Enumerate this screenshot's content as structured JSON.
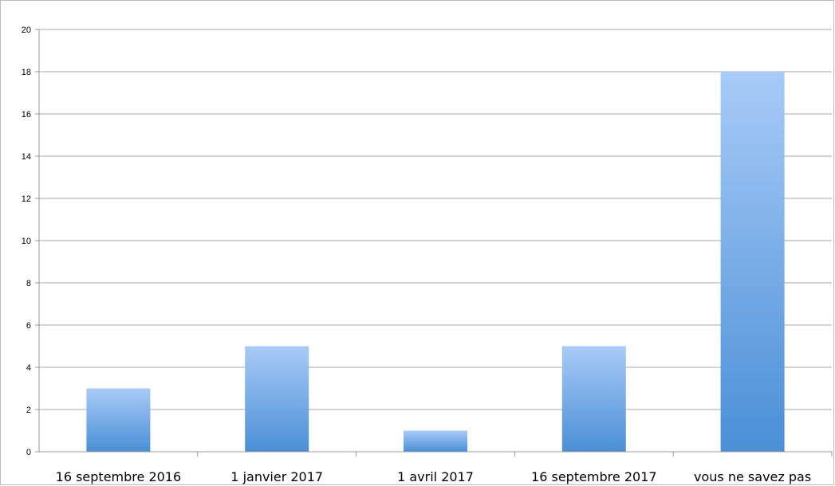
{
  "chart_data": {
    "type": "bar",
    "categories": [
      "16 septembre 2016",
      "1 janvier 2017",
      "1 avril 2017",
      "16 septembre 2017",
      "vous ne savez pas"
    ],
    "values": [
      3,
      5,
      1,
      5,
      18
    ],
    "title": "",
    "xlabel": "",
    "ylabel": "",
    "ylim": [
      0,
      20
    ],
    "yticks": [
      0,
      2,
      4,
      6,
      8,
      10,
      12,
      14,
      16,
      18,
      20
    ],
    "grid": true,
    "legend": "none"
  },
  "colors": {
    "bar_top": "#a8cbf7",
    "bar_bottom": "#4a8fd6",
    "grid": "#a7a7a7",
    "axis": "#9a9a9a",
    "frame": "#bcbcbc"
  }
}
